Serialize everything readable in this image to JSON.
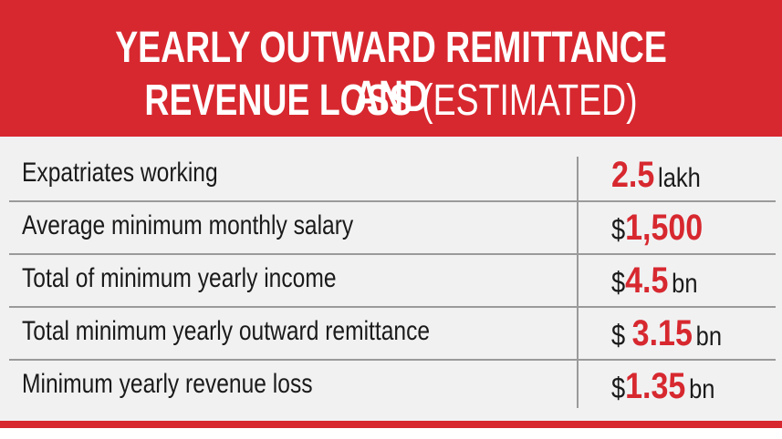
{
  "header": {
    "title_line1": "YEARLY OUTWARD REMITTANCE AND",
    "title_line2_main": "REVENUE LOSS",
    "title_line2_sub": "(ESTIMATED)"
  },
  "colors": {
    "accent": "#d7282f",
    "panel": "#f1f1f2"
  },
  "rows": [
    {
      "label": "Expatriates working",
      "prefix": "",
      "value": "2.5",
      "unit": "lakh"
    },
    {
      "label": "Average minimum monthly salary",
      "prefix": "$",
      "value": "1,500",
      "unit": ""
    },
    {
      "label": "Total of minimum yearly income",
      "prefix": "$",
      "value": "4.5",
      "unit": "bn"
    },
    {
      "label": "Total minimum yearly outward remittance",
      "prefix": "$ ",
      "value": "3.15",
      "unit": "bn"
    },
    {
      "label": "Minimum yearly revenue loss",
      "prefix": "$",
      "value": "1.35",
      "unit": "bn"
    }
  ]
}
